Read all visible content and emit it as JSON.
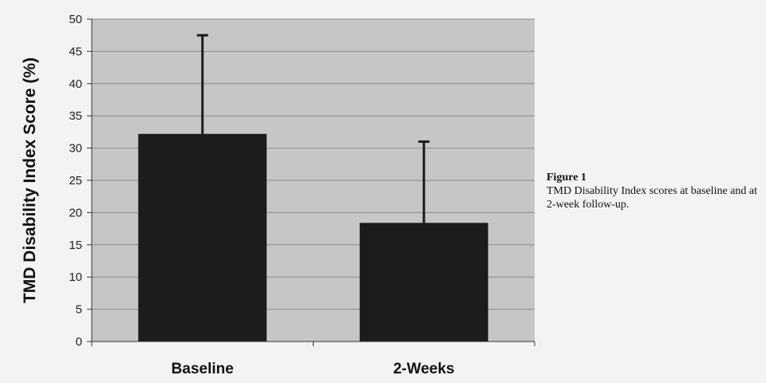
{
  "chart_data": {
    "type": "bar",
    "categories": [
      "Baseline",
      "2-Weeks"
    ],
    "values": [
      32.2,
      18.4
    ],
    "error_upper": [
      47.5,
      31.0
    ],
    "ylabel": "TMD Disability Index Score (%)",
    "xlabel": "",
    "ylim": [
      0,
      50
    ],
    "yticks": [
      0,
      5,
      10,
      15,
      20,
      25,
      30,
      35,
      40,
      45,
      50
    ],
    "grid": true,
    "colors": {
      "plot_bg": "#c6c6c6",
      "bar": "#1c1c1c",
      "grid": "#8a8a8a"
    }
  },
  "caption": {
    "label": "Figure 1",
    "text": "TMD Disability Index scores at baseline and at 2-week follow-up."
  }
}
